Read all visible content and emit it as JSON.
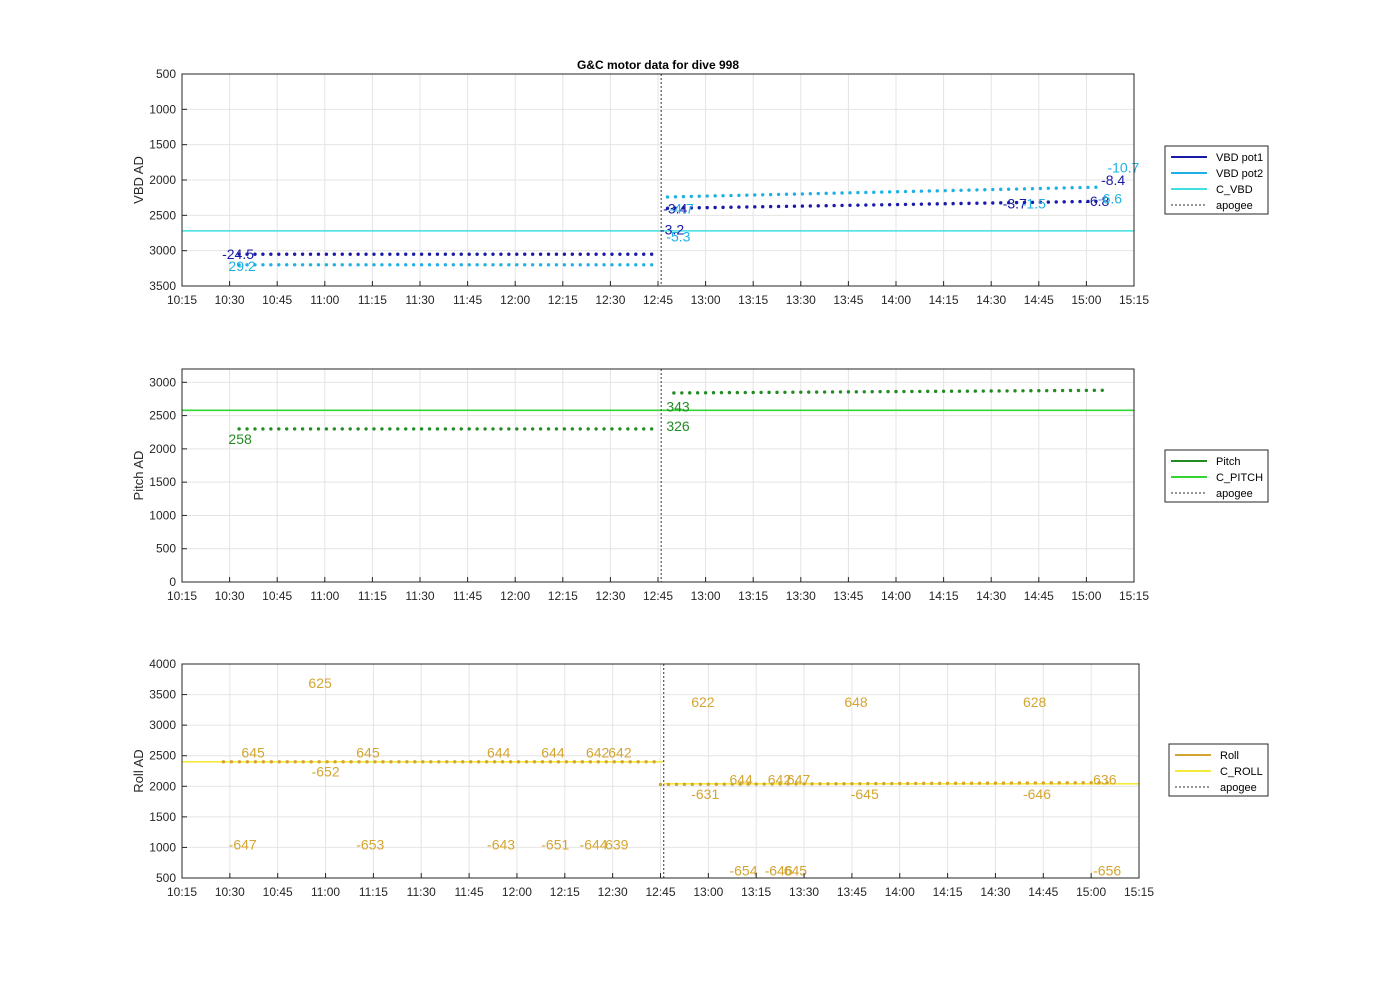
{
  "title": "G&C motor data for dive 998",
  "colors": {
    "vbd_pot1": "#1a1aa8",
    "vbd_pot2": "#1fb1e6",
    "c_vbd": "#40e0e0",
    "pitch": "#228b22",
    "c_pitch": "#33d633",
    "roll": "#d4a530",
    "c_roll": "#f5ea3a",
    "apogee": "#555555"
  },
  "chart_data": [
    {
      "type": "line",
      "name": "vbd",
      "ylabel": "VBD AD",
      "ylim": [
        500,
        3500
      ],
      "y_reversed": true,
      "yticks": [
        500,
        1000,
        1500,
        2000,
        2500,
        3000,
        3500
      ],
      "xlim_minutes": [
        615,
        915
      ],
      "xtick_labels": [
        "10:15",
        "10:30",
        "10:45",
        "11:00",
        "11:15",
        "11:30",
        "11:45",
        "12:00",
        "12:15",
        "12:30",
        "12:45",
        "13:00",
        "13:15",
        "13:30",
        "13:45",
        "14:00",
        "14:15",
        "14:30",
        "14:45",
        "15:00",
        "15:15"
      ],
      "grid": true,
      "legend": [
        "VBD pot1",
        "VBD pot2",
        "C_VBD",
        "apogee"
      ],
      "reference_line": {
        "name": "C_VBD",
        "y": 2720
      },
      "apogee_time": "12:46",
      "series": [
        {
          "name": "VBD pot1",
          "y_start": 3050,
          "y_end": 3050,
          "x_start": "10:33",
          "x_end": "12:45"
        },
        {
          "name": "VBD pot1",
          "y_start": 2400,
          "y_end": 2300,
          "x_start": "12:48",
          "x_end": "15:05"
        },
        {
          "name": "VBD pot2",
          "y_start": 3200,
          "y_end": 3200,
          "x_start": "10:33",
          "x_end": "12:45"
        },
        {
          "name": "VBD pot2",
          "y_start": 2240,
          "y_end": 2100,
          "x_start": "12:48",
          "x_end": "15:05"
        }
      ],
      "annotations": [
        {
          "text": "-24.5",
          "series": "VBD pot1",
          "x": "10:27",
          "y": 3050
        },
        {
          "text": "29.2",
          "series": "VBD pot2",
          "x": "10:29",
          "y": 3220
        },
        {
          "text": "-3.2",
          "series": "VBD pot1",
          "x": "12:45",
          "y": 2700
        },
        {
          "text": "-3.4",
          "series": "VBD pot1",
          "x": "12:46",
          "y": 2400
        },
        {
          "text": "-4.7",
          "series": "VBD pot2",
          "x": "12:48",
          "y": 2400
        },
        {
          "text": "-5.3",
          "series": "VBD pot2",
          "x": "12:47",
          "y": 2800
        },
        {
          "text": "-3.7",
          "series": "VBD pot1",
          "x": "14:33",
          "y": 2330
        },
        {
          "text": "-1.5",
          "series": "VBD pot2",
          "x": "14:39",
          "y": 2330
        },
        {
          "text": "-6.8",
          "series": "VBD pot1",
          "x": "14:59",
          "y": 2300
        },
        {
          "text": "-8.4",
          "series": "VBD pot1",
          "x": "15:04",
          "y": 2000
        },
        {
          "text": "-6.6",
          "series": "VBD pot2",
          "x": "15:03",
          "y": 2260
        },
        {
          "text": "-10.7",
          "series": "VBD pot2",
          "x": "15:06",
          "y": 1820
        }
      ]
    },
    {
      "type": "line",
      "name": "pitch",
      "ylabel": "Pitch AD",
      "ylim": [
        0,
        3200
      ],
      "yticks": [
        0,
        500,
        1000,
        1500,
        2000,
        2500,
        3000
      ],
      "xlim_minutes": [
        615,
        915
      ],
      "xtick_labels": [
        "10:15",
        "10:30",
        "10:45",
        "11:00",
        "11:15",
        "11:30",
        "11:45",
        "12:00",
        "12:15",
        "12:30",
        "12:45",
        "13:00",
        "13:15",
        "13:30",
        "13:45",
        "14:00",
        "14:15",
        "14:30",
        "14:45",
        "15:00",
        "15:15"
      ],
      "grid": true,
      "legend": [
        "Pitch",
        "C_PITCH",
        "apogee"
      ],
      "reference_line": {
        "name": "C_PITCH",
        "y": 2580
      },
      "apogee_time": "12:46",
      "series": [
        {
          "name": "Pitch",
          "y_start": 2300,
          "y_end": 2300,
          "x_start": "10:33",
          "x_end": "12:43"
        },
        {
          "name": "Pitch",
          "y_start": 2840,
          "y_end": 2880,
          "x_start": "12:50",
          "x_end": "15:05"
        }
      ],
      "annotations": [
        {
          "text": "258",
          "series": "Pitch",
          "x": "10:29",
          "y": 2150
        },
        {
          "text": "326",
          "series": "Pitch",
          "x": "12:47",
          "y": 2340
        },
        {
          "text": "343",
          "series": "Pitch",
          "x": "12:47",
          "y": 2640
        }
      ]
    },
    {
      "type": "line",
      "name": "roll",
      "ylabel": "Roll AD",
      "ylim": [
        500,
        4000
      ],
      "yticks": [
        500,
        1000,
        1500,
        2000,
        2500,
        3000,
        3500,
        4000
      ],
      "xlim_minutes": [
        615,
        915
      ],
      "xtick_labels": [
        "10:15",
        "10:30",
        "10:45",
        "11:00",
        "11:15",
        "11:30",
        "11:45",
        "12:00",
        "12:15",
        "12:30",
        "12:45",
        "13:00",
        "13:15",
        "13:30",
        "13:45",
        "14:00",
        "14:15",
        "14:30",
        "14:45",
        "15:00",
        "15:15"
      ],
      "grid": true,
      "legend": [
        "Roll",
        "C_ROLL",
        "apogee"
      ],
      "reference_line": {
        "name": "C_ROLL",
        "y_before_apogee": 2400,
        "y_after_apogee": 2040
      },
      "apogee_time": "12:46",
      "series": [
        {
          "name": "Roll",
          "y_start": 2400,
          "y_end": 2400,
          "x_start": "10:28",
          "x_end": "12:43"
        },
        {
          "name": "Roll",
          "y_start": 2030,
          "y_end": 2060,
          "x_start": "12:45",
          "x_end": "15:07"
        }
      ],
      "annotations": [
        {
          "text": "-647",
          "x": "10:29",
          "y": 1050
        },
        {
          "text": "645",
          "x": "10:33",
          "y": 2550
        },
        {
          "text": "625",
          "x": "10:54",
          "y": 3690
        },
        {
          "text": "-652",
          "x": "10:55",
          "y": 2240
        },
        {
          "text": "645",
          "x": "11:09",
          "y": 2550
        },
        {
          "text": "-653",
          "x": "11:09",
          "y": 1050
        },
        {
          "text": "644",
          "x": "11:50",
          "y": 2550
        },
        {
          "text": "-643",
          "x": "11:50",
          "y": 1050
        },
        {
          "text": "644",
          "x": "12:07",
          "y": 2550
        },
        {
          "text": "-651",
          "x": "12:07",
          "y": 1050
        },
        {
          "text": "642",
          "x": "12:21",
          "y": 2550
        },
        {
          "text": "-644",
          "x": "12:19",
          "y": 1050
        },
        {
          "text": "642",
          "x": "12:28",
          "y": 2550
        },
        {
          "text": "639",
          "x": "12:27",
          "y": 1050
        },
        {
          "text": "622",
          "x": "12:54",
          "y": 3380
        },
        {
          "text": "-631",
          "x": "12:54",
          "y": 1870
        },
        {
          "text": "644",
          "x": "13:06",
          "y": 2110
        },
        {
          "text": "-654",
          "x": "13:06",
          "y": 620
        },
        {
          "text": "642",
          "x": "13:18",
          "y": 2110
        },
        {
          "text": "-646",
          "x": "13:17",
          "y": 620
        },
        {
          "text": "647",
          "x": "13:24",
          "y": 2110
        },
        {
          "text": "645",
          "x": "13:23",
          "y": 620
        },
        {
          "text": "648",
          "x": "13:42",
          "y": 3380
        },
        {
          "text": "-645",
          "x": "13:44",
          "y": 1870
        },
        {
          "text": "628",
          "x": "14:38",
          "y": 3380
        },
        {
          "text": "-646",
          "x": "14:38",
          "y": 1870
        },
        {
          "text": "636",
          "x": "15:00",
          "y": 2110
        },
        {
          "text": "-656",
          "x": "15:00",
          "y": 620
        }
      ]
    }
  ]
}
